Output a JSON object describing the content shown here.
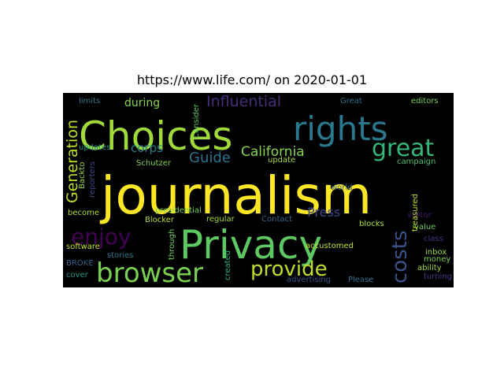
{
  "title": "https://www.life.com/ on 2020-01-01",
  "colors": {
    "background": "#000000",
    "page": "#ffffff"
  },
  "words": [
    {
      "text": "journalism",
      "color": "#fde725"
    },
    {
      "text": "Privacy",
      "color": "#5ec962"
    },
    {
      "text": "Choices",
      "color": "#a0da39"
    },
    {
      "text": "rights",
      "color": "#2a788e"
    },
    {
      "text": "browser",
      "color": "#7ad151"
    },
    {
      "text": "great",
      "color": "#34b679"
    },
    {
      "text": "enjoy",
      "color": "#440154"
    },
    {
      "text": "provide",
      "color": "#bddf26"
    },
    {
      "text": "costs",
      "color": "#3b528b"
    },
    {
      "text": "California",
      "color": "#86d549"
    },
    {
      "text": "Generation",
      "color": "#c2df23"
    },
    {
      "text": "Influential",
      "color": "#472d7b"
    },
    {
      "text": "Guide",
      "color": "#2c728e"
    },
    {
      "text": "Press",
      "color": "#3e4a89"
    },
    {
      "text": "corps",
      "color": "#25858e"
    },
    {
      "text": "during",
      "color": "#84d44b"
    },
    {
      "text": "update",
      "color": "#a8db34"
    },
    {
      "text": "Consider",
      "color": "#5cc863"
    },
    {
      "text": "Schutzer",
      "color": "#7fd34e"
    },
    {
      "text": "presidential",
      "color": "#6ccd5a"
    },
    {
      "text": "regular",
      "color": "#a0da39"
    },
    {
      "text": "Contact",
      "color": "#31668e"
    },
    {
      "text": "accustomed",
      "color": "#c8e020"
    },
    {
      "text": "blocks",
      "color": "#b5de2b"
    },
    {
      "text": "through",
      "color": "#6ece58"
    },
    {
      "text": "created",
      "color": "#2ab07f"
    },
    {
      "text": "Blocker",
      "color": "#b8de29"
    },
    {
      "text": "Backto",
      "color": "#93d741"
    },
    {
      "text": "reporters",
      "color": "#414487"
    },
    {
      "text": "updates",
      "color": "#21918c"
    },
    {
      "text": "limits",
      "color": "#297b8e"
    },
    {
      "text": "Great",
      "color": "#2e6f8e"
    },
    {
      "text": "editors",
      "color": "#7ad151"
    },
    {
      "text": "campaign",
      "color": "#4ac16d"
    },
    {
      "text": "world",
      "color": "#31688e"
    },
    {
      "text": "visitor",
      "color": "#48186a"
    },
    {
      "text": "value",
      "color": "#6ece58"
    },
    {
      "text": "class",
      "color": "#46327e"
    },
    {
      "text": "inbox",
      "color": "#9bd93c"
    },
    {
      "text": "money",
      "color": "#7ad151"
    },
    {
      "text": "ability",
      "color": "#9fda3a"
    },
    {
      "text": "turning",
      "color": "#433e85"
    },
    {
      "text": "treasured",
      "color": "#c0df25"
    },
    {
      "text": "become",
      "color": "#addc30"
    },
    {
      "text": "software",
      "color": "#c5e021"
    },
    {
      "text": "BROKE",
      "color": "#33638d"
    },
    {
      "text": "stories",
      "color": "#2a788e"
    },
    {
      "text": "cover",
      "color": "#1f988b"
    },
    {
      "text": "advertising",
      "color": "#3b528b"
    },
    {
      "text": "Please",
      "color": "#2d708e"
    }
  ]
}
